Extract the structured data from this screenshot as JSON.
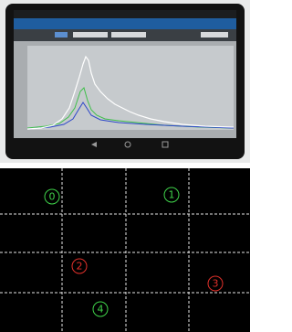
{
  "grid_labels": [
    "0",
    "1",
    "2",
    "3",
    "4"
  ]
}
